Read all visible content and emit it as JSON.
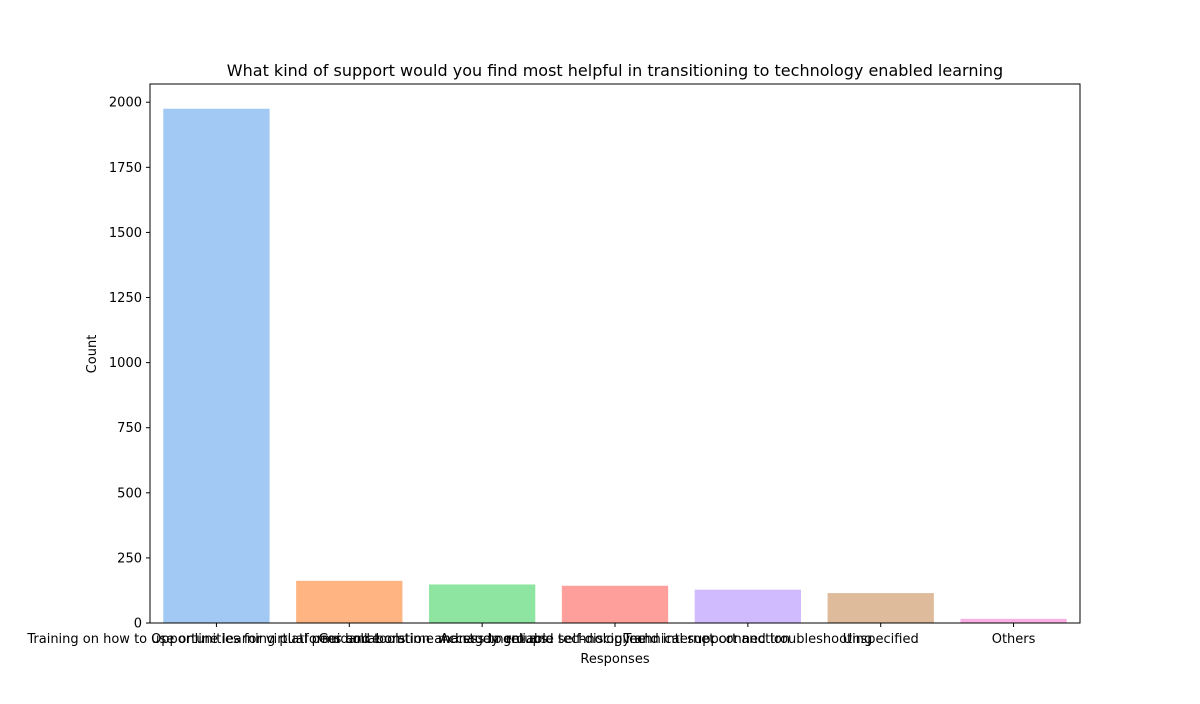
{
  "chart_data": {
    "type": "bar",
    "title": "What kind of support would you find most helpful in transitioning to technology enabled learning",
    "xlabel": "Responses",
    "ylabel": "Count",
    "ylim": [
      0,
      2070
    ],
    "yticks": [
      0,
      250,
      500,
      750,
      1000,
      1250,
      1500,
      1750,
      2000
    ],
    "grid": false,
    "categories": [
      "Training on how to use online learning platforms and tools",
      "Opportunities for virtual peer collaboration and study groups",
      "Guidance on time management and self-discipline",
      "Access to reliable technology and internet connection",
      "Technical support and troubleshooting",
      "Unspecified",
      "Others"
    ],
    "values": [
      1975,
      162,
      148,
      143,
      128,
      115,
      16
    ],
    "colors": [
      "#a1c9f4",
      "#ffb482",
      "#8de5a1",
      "#ff9f9b",
      "#d0bbff",
      "#debb9b",
      "#fab0e4"
    ]
  }
}
